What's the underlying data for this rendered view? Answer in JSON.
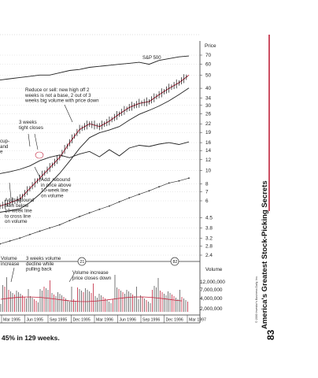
{
  "page": {
    "caption": "45% in 129 weeks.",
    "side_title": "America's Greatest Stock-Picking Secrets",
    "page_number": "83",
    "copyright": "© 2000 Investor's Business Daily, Inc.",
    "accent_color": "#c0223b"
  },
  "chart_data": {
    "type": "line",
    "title": "",
    "price_axis_label": "Price",
    "volume_axis_label": "Volume",
    "sp500_label": "S&P 500",
    "price_ticks": [
      "70",
      "60",
      "50",
      "40",
      "34",
      "30",
      "26",
      "22",
      "19",
      "16",
      "14",
      "12",
      "10",
      "8",
      "7",
      "6",
      "4.5",
      "3.8",
      "3.2",
      "2.8",
      "2.4"
    ],
    "volume_ticks": [
      "12,000,000",
      "7,000,000",
      "4,000,000",
      "2,000,000"
    ],
    "months": [
      "Mar 1995",
      "Jun 1995",
      "Sep 1995",
      "Dec 1995",
      "Mar 1996",
      "Jun 1996",
      "Sep 1996",
      "Dec 1996",
      "Mar 1997"
    ],
    "rank_markers": [
      "21",
      "82"
    ],
    "series": [
      {
        "name": "S&P 500",
        "values": [
          46,
          47,
          48,
          49,
          50,
          50,
          52,
          54,
          55,
          57,
          58,
          59,
          60,
          61,
          62,
          60,
          64,
          66,
          68,
          69
        ]
      },
      {
        "name": "",
        "values": [
          5.5,
          5.8,
          6.2,
          7.4,
          8.8,
          10.5,
          12.5,
          16,
          20,
          22,
          21,
          23,
          26,
          29,
          31,
          32,
          36,
          40,
          44,
          50
        ]
      },
      {
        "name": "",
        "values": [
          9.5,
          9.8,
          10.2,
          10.8,
          11.8,
          12.5,
          13,
          12.4,
          13.2,
          13.8,
          12.6,
          14.2,
          12.8,
          14.6,
          15.3,
          15,
          15.6,
          16,
          15.5,
          16.2
        ]
      },
      {
        "name": "",
        "values": [
          2.9,
          3.05,
          3.2,
          3.4,
          3.6,
          3.8,
          4.0,
          4.3,
          4.6,
          4.9,
          5.2,
          5.5,
          5.9,
          6.3,
          6.7,
          7.1,
          7.6,
          8.1,
          8.4,
          8.8
        ]
      }
    ],
    "annotations": [
      {
        "id": "a1",
        "lines": [
          "Reduce or sell: new high off 2",
          "weeks is not a base, 2 out of 3",
          "weeks big volume with price down"
        ]
      },
      {
        "id": "a2",
        "lines": [
          "3 weeks",
          "tight closes"
        ]
      },
      {
        "id": "a3",
        "lines": [
          "cup-",
          "and",
          "e"
        ]
      },
      {
        "id": "a4",
        "lines": [
          "Add: rebound",
          "in price above",
          "10-week line",
          "on volume"
        ]
      },
      {
        "id": "a5",
        "lines": [
          "Add: rebound",
          "from below",
          "10-week line",
          "to cross line",
          "on volume"
        ]
      },
      {
        "id": "a6",
        "lines": [
          "Volume",
          "increase"
        ]
      },
      {
        "id": "a7",
        "lines": [
          "3 weeks volume",
          "decline while",
          "pulling back"
        ]
      },
      {
        "id": "a8",
        "lines": [
          "Volume increase",
          "price closes down"
        ]
      }
    ]
  }
}
